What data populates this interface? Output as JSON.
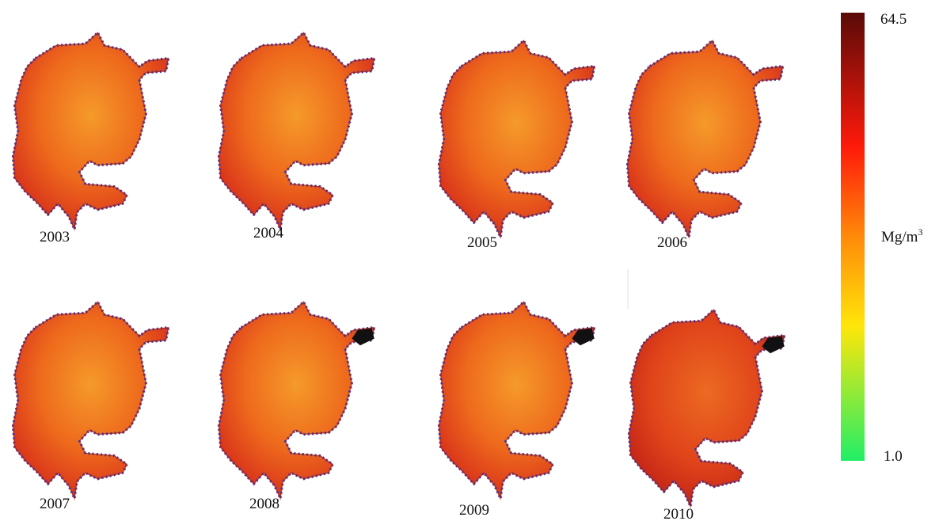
{
  "maps": [
    {
      "year": "2003"
    },
    {
      "year": "2004"
    },
    {
      "year": "2005"
    },
    {
      "year": "2006"
    },
    {
      "year": "2007"
    },
    {
      "year": "2008"
    },
    {
      "year": "2009"
    },
    {
      "year": "2010"
    }
  ],
  "colorbar": {
    "max_label": "64.5",
    "min_label": "1.0",
    "unit": "Mg/m",
    "unit_exponent": "3"
  }
}
